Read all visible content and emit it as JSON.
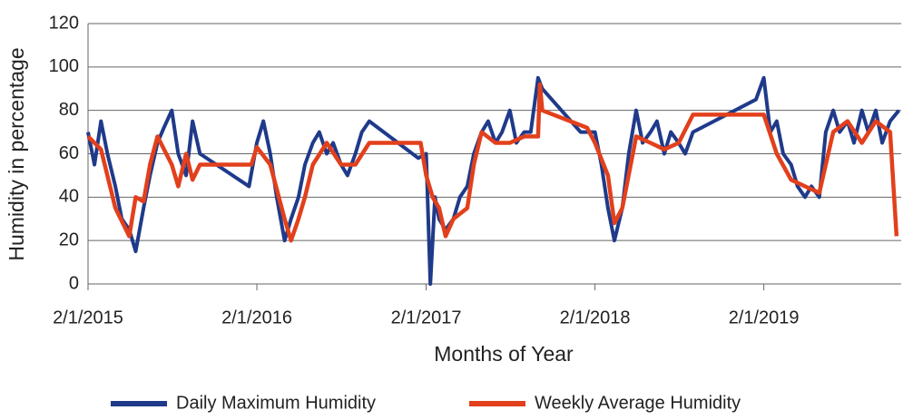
{
  "chart_data": {
    "type": "line",
    "y_label": "Humidity in percentage",
    "x_label": "Months of Year",
    "xlim": [
      "2015-02-01",
      "2019-11-25"
    ],
    "ylim": [
      0,
      120
    ],
    "yticks": [
      0,
      20,
      40,
      60,
      80,
      100,
      120
    ],
    "xticks": [
      {
        "value": "2015-02-01",
        "label": "2/1/2015"
      },
      {
        "value": "2016-02-01",
        "label": "2/1/2016"
      },
      {
        "value": "2017-02-01",
        "label": "2/1/2017"
      },
      {
        "value": "2018-02-01",
        "label": "2/1/2018"
      },
      {
        "value": "2019-02-01",
        "label": "2/1/2019"
      }
    ],
    "grid": true,
    "legend": "bottom",
    "series": [
      {
        "name": "Daily Maximum Humidity",
        "color": "#1f3a8a",
        "x": [
          "2015-02-01",
          "2015-02-15",
          "2015-03-01",
          "2015-03-15",
          "2015-04-01",
          "2015-04-15",
          "2015-05-01",
          "2015-05-15",
          "2015-06-01",
          "2015-06-15",
          "2015-07-01",
          "2015-07-15",
          "2015-08-01",
          "2015-08-15",
          "2015-09-01",
          "2015-09-15",
          "2015-10-01",
          "2016-01-15",
          "2016-02-01",
          "2016-02-15",
          "2016-03-01",
          "2016-03-15",
          "2016-04-01",
          "2016-04-15",
          "2016-05-01",
          "2016-05-15",
          "2016-06-01",
          "2016-06-15",
          "2016-07-01",
          "2016-07-15",
          "2016-08-01",
          "2016-08-15",
          "2016-09-01",
          "2016-09-15",
          "2016-10-01",
          "2017-01-15",
          "2017-02-01",
          "2017-02-10",
          "2017-02-20",
          "2017-03-01",
          "2017-03-15",
          "2017-04-01",
          "2017-04-15",
          "2017-05-01",
          "2017-05-15",
          "2017-06-01",
          "2017-06-15",
          "2017-07-01",
          "2017-07-15",
          "2017-08-01",
          "2017-08-15",
          "2017-09-01",
          "2017-09-15",
          "2017-10-01",
          "2017-10-10",
          "2018-01-01",
          "2018-02-01",
          "2018-02-15",
          "2018-03-01",
          "2018-03-15",
          "2018-04-01",
          "2018-04-15",
          "2018-05-01",
          "2018-05-15",
          "2018-06-01",
          "2018-06-15",
          "2018-07-01",
          "2018-07-15",
          "2018-08-01",
          "2018-08-15",
          "2018-09-01",
          "2019-01-15",
          "2019-02-01",
          "2019-02-15",
          "2019-03-01",
          "2019-03-15",
          "2019-04-01",
          "2019-04-15",
          "2019-05-01",
          "2019-05-15",
          "2019-06-01",
          "2019-06-15",
          "2019-07-01",
          "2019-07-15",
          "2019-08-01",
          "2019-08-15",
          "2019-09-01",
          "2019-09-15",
          "2019-10-01",
          "2019-10-15",
          "2019-11-01",
          "2019-11-20"
        ],
        "values": [
          70,
          55,
          75,
          60,
          45,
          30,
          25,
          15,
          35,
          50,
          65,
          72,
          80,
          60,
          50,
          75,
          60,
          45,
          65,
          75,
          60,
          40,
          20,
          30,
          40,
          55,
          65,
          70,
          60,
          65,
          55,
          50,
          60,
          70,
          75,
          58,
          60,
          0,
          40,
          30,
          25,
          30,
          40,
          45,
          60,
          70,
          75,
          65,
          70,
          80,
          65,
          70,
          70,
          95,
          90,
          70,
          70,
          55,
          35,
          20,
          35,
          60,
          80,
          65,
          70,
          75,
          60,
          70,
          65,
          60,
          70,
          85,
          95,
          70,
          75,
          60,
          55,
          45,
          40,
          45,
          40,
          70,
          80,
          70,
          75,
          65,
          80,
          70,
          80,
          65,
          75,
          80
        ]
      },
      {
        "name": "Weekly Average Humidity",
        "color": "#e2401c",
        "x": [
          "2015-02-01",
          "2015-03-01",
          "2015-04-01",
          "2015-05-01",
          "2015-05-15",
          "2015-06-01",
          "2015-06-15",
          "2015-07-01",
          "2015-08-01",
          "2015-08-15",
          "2015-09-01",
          "2015-09-15",
          "2015-10-01",
          "2016-01-20",
          "2016-02-01",
          "2016-03-01",
          "2016-04-01",
          "2016-04-15",
          "2016-05-01",
          "2016-05-15",
          "2016-06-01",
          "2016-07-01",
          "2016-08-01",
          "2016-09-01",
          "2016-10-01",
          "2017-01-20",
          "2017-02-01",
          "2017-02-15",
          "2017-03-01",
          "2017-03-15",
          "2017-04-01",
          "2017-05-01",
          "2017-05-15",
          "2017-06-01",
          "2017-07-01",
          "2017-08-01",
          "2017-09-01",
          "2017-10-01",
          "2017-10-05",
          "2017-10-10",
          "2018-01-15",
          "2018-02-01",
          "2018-03-01",
          "2018-03-15",
          "2018-04-01",
          "2018-05-01",
          "2018-06-01",
          "2018-07-01",
          "2018-08-01",
          "2018-09-01",
          "2019-01-15",
          "2019-02-01",
          "2019-03-01",
          "2019-04-01",
          "2019-05-01",
          "2019-06-01",
          "2019-06-15",
          "2019-07-01",
          "2019-08-01",
          "2019-09-01",
          "2019-10-01",
          "2019-11-01",
          "2019-11-15"
        ],
        "values": [
          68,
          62,
          35,
          22,
          40,
          38,
          55,
          68,
          55,
          45,
          60,
          48,
          55,
          55,
          63,
          55,
          30,
          20,
          30,
          40,
          55,
          65,
          55,
          55,
          65,
          65,
          50,
          40,
          35,
          22,
          30,
          35,
          55,
          70,
          65,
          65,
          68,
          68,
          92,
          80,
          72,
          65,
          50,
          28,
          35,
          68,
          65,
          62,
          65,
          78,
          78,
          78,
          60,
          48,
          45,
          42,
          55,
          70,
          75,
          65,
          75,
          70,
          22
        ]
      }
    ]
  }
}
